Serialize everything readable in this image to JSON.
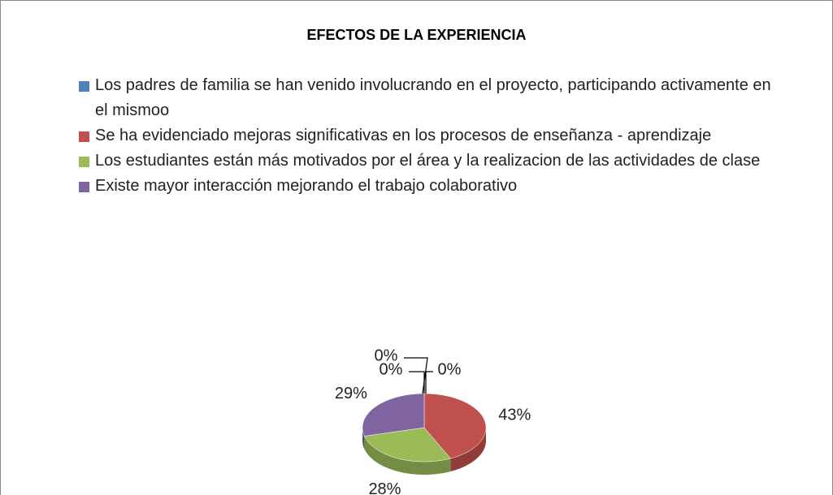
{
  "chart_data": {
    "type": "pie",
    "title": "EFECTOS DE LA EXPERIENCIA",
    "categories": [
      "Los padres de familia se han venido involucrando en el proyecto, participando activamente en el mismoo",
      "Se ha evidenciado mejoras significativas en los procesos de enseñanza - aprendizaje",
      "Los estudiantes están más motivados por el área y la realizacion de las actividades de clase",
      "Existe mayor interacción mejorando el trabajo colaborativo",
      null,
      null
    ],
    "values": [
      0,
      43,
      28,
      29,
      0,
      0
    ],
    "value_labels": [
      "0%",
      "43%",
      "28%",
      "29%",
      "0%",
      "0%"
    ],
    "colors": [
      "#4f81bd",
      "#c0504d",
      "#9bbb59",
      "#8064a2",
      "#4bacc6",
      "#f79646"
    ],
    "legend": "top"
  }
}
